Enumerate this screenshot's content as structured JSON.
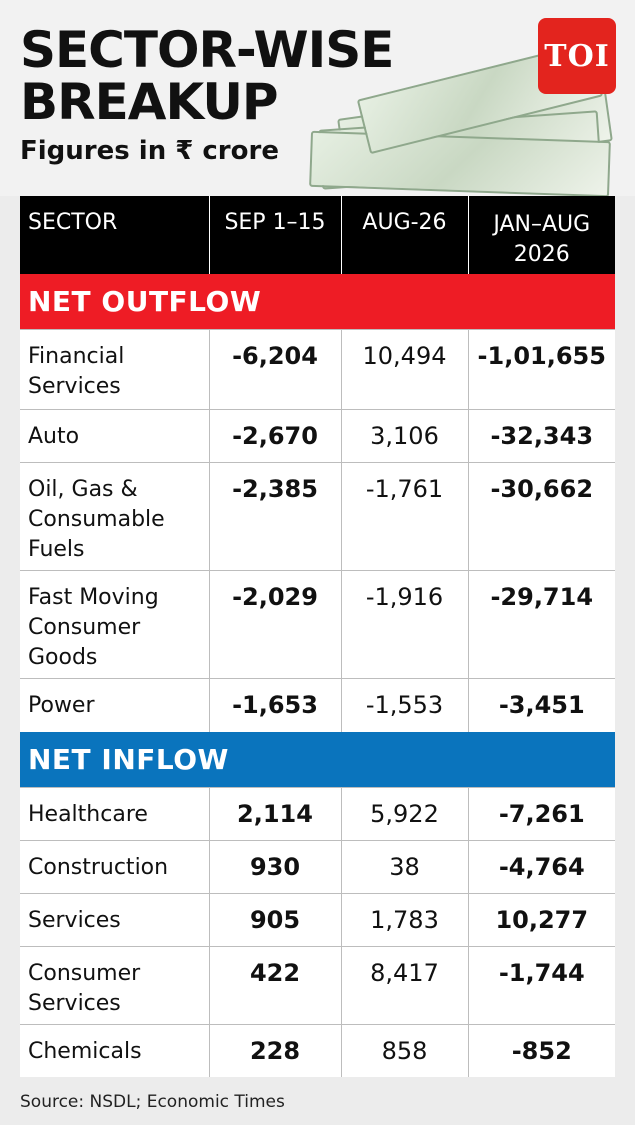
{
  "header": {
    "title_line1": "SECTOR-WISE",
    "title_line2": "BREAKUP",
    "subtitle": "Figures in ₹ crore",
    "logo_text": "TOI"
  },
  "table": {
    "columns": [
      "SECTOR",
      "SEP 1–15",
      "AUG-26",
      "JAN–AUG 2026"
    ],
    "outflow_label": "NET OUTFLOW",
    "inflow_label": "NET INFLOW",
    "outflow_rows": [
      {
        "sector": "Financial Services",
        "sep": "-6,204",
        "aug": "10,494",
        "janaug": "-1,01,655"
      },
      {
        "sector": "Auto",
        "sep": "-2,670",
        "aug": "3,106",
        "janaug": "-32,343"
      },
      {
        "sector": "Oil, Gas & Consumable Fuels",
        "sep": "-2,385",
        "aug": "-1,761",
        "janaug": "-30,662"
      },
      {
        "sector": "Fast Moving Consumer Goods",
        "sep": "-2,029",
        "aug": "-1,916",
        "janaug": "-29,714"
      },
      {
        "sector": "Power",
        "sep": "-1,653",
        "aug": "-1,553",
        "janaug": "-3,451"
      }
    ],
    "inflow_rows": [
      {
        "sector": "Healthcare",
        "sep": "2,114",
        "aug": "5,922",
        "janaug": "-7,261"
      },
      {
        "sector": "Construction",
        "sep": "930",
        "aug": "38",
        "janaug": "-4,764"
      },
      {
        "sector": "Services",
        "sep": "905",
        "aug": "1,783",
        "janaug": "10,277"
      },
      {
        "sector": "Consumer Services",
        "sep": "422",
        "aug": "8,417",
        "janaug": "-1,744"
      },
      {
        "sector": "Chemicals",
        "sep": "228",
        "aug": "858",
        "janaug": "-852"
      }
    ]
  },
  "source": "Source: NSDL; Economic Times",
  "colors": {
    "outflow": "#ee1c25",
    "inflow": "#0a74bd",
    "header": "#000000",
    "logo": "#e3241e"
  }
}
